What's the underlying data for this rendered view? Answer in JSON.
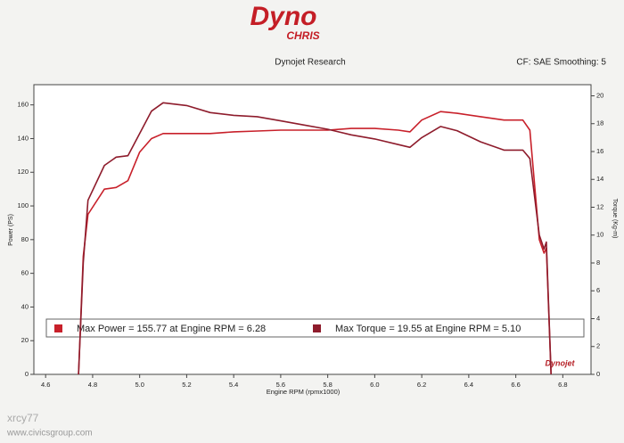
{
  "logo": {
    "main": "Dyno",
    "sub": "CHRIS"
  },
  "header": {
    "left": "Dynojet Research",
    "right": "CF: SAE Smoothing: 5"
  },
  "watermark": {
    "user": "xrcy77",
    "site": "www.civicsgroup.com"
  },
  "badge": "Dynojet",
  "chart_data": {
    "type": "line",
    "xlabel": "Engine RPM (rpmx1000)",
    "ylabel": "Power (PS)",
    "y2label": "Torque (Kg-m)",
    "x": [
      4.74,
      4.76,
      4.78,
      4.85,
      4.9,
      4.95,
      5.0,
      5.05,
      5.1,
      5.2,
      5.3,
      5.4,
      5.5,
      5.6,
      5.7,
      5.8,
      5.9,
      6.0,
      6.1,
      6.15,
      6.2,
      6.28,
      6.35,
      6.45,
      6.55,
      6.63,
      6.66,
      6.7,
      6.72,
      6.73,
      6.75
    ],
    "series": [
      {
        "name": "Max Power = 155.77 at Engine RPM = 6.28",
        "color": "#c8202a",
        "axis": "y",
        "values": [
          0,
          70,
          95,
          110,
          111,
          115,
          132,
          140,
          143,
          143,
          143,
          144,
          144.5,
          145,
          145,
          145,
          146,
          146,
          145,
          144,
          151,
          156,
          155,
          153,
          151,
          151,
          145,
          80,
          72,
          75,
          0
        ]
      },
      {
        "name": "Max Torque = 19.55 at Engine RPM = 5.10",
        "color": "#8e1c2c",
        "axis": "y2",
        "values": [
          0,
          8,
          12.5,
          15,
          15.6,
          15.7,
          17.3,
          18.9,
          19.5,
          19.3,
          18.8,
          18.6,
          18.5,
          18.2,
          17.9,
          17.6,
          17.2,
          16.9,
          16.5,
          16.3,
          17.0,
          17.8,
          17.5,
          16.7,
          16.1,
          16.1,
          15.5,
          10,
          9,
          9.5,
          0
        ]
      }
    ],
    "xlim": [
      4.55,
      6.92
    ],
    "xticks": [
      4.6,
      4.8,
      {
        "value": 5,
        "label": "5.0"
      },
      5.2,
      5.4,
      5.6,
      5.8,
      {
        "value": 6,
        "label": "6.0"
      },
      6.2,
      6.4,
      6.6,
      6.8
    ],
    "ylim": [
      0,
      172
    ],
    "yticks": [
      0,
      20,
      40,
      60,
      80,
      100,
      120,
      140,
      160
    ],
    "y2lim": [
      0,
      20.8
    ],
    "y2ticks": [
      0,
      2,
      4,
      6,
      8,
      10,
      12,
      14,
      16,
      18,
      20
    ],
    "grid": false
  }
}
